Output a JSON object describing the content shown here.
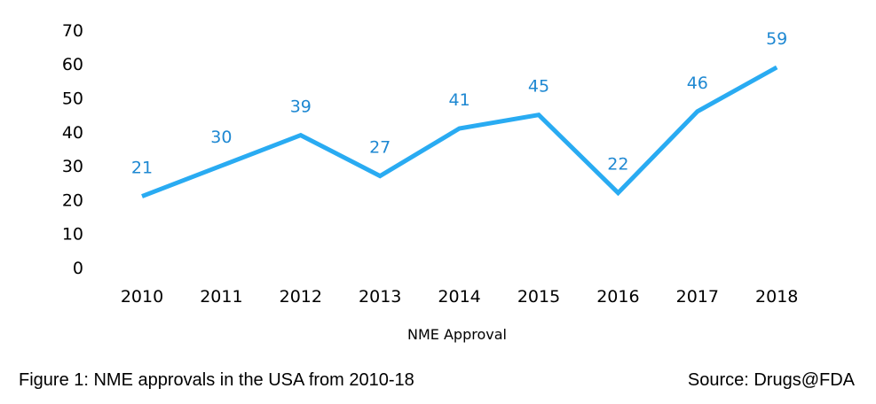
{
  "chart_data": {
    "type": "line",
    "categories": [
      "2010",
      "2011",
      "2012",
      "2013",
      "2014",
      "2015",
      "2016",
      "2017",
      "2018"
    ],
    "series": [
      {
        "values": [
          21,
          30,
          39,
          27,
          41,
          45,
          22,
          46,
          59
        ],
        "color": "#29abf2"
      }
    ],
    "data_label_color": "#1e88d2",
    "y_ticks": [
      0,
      10,
      20,
      30,
      40,
      50,
      60,
      70
    ],
    "ylim": [
      0,
      70
    ],
    "xlabel": "NME Approval",
    "ylabel": "",
    "title": "",
    "grid": false,
    "legend": "none"
  },
  "caption": {
    "left": "Figure 1: NME approvals in the USA from 2010-18",
    "right": "Source: Drugs@FDA"
  }
}
